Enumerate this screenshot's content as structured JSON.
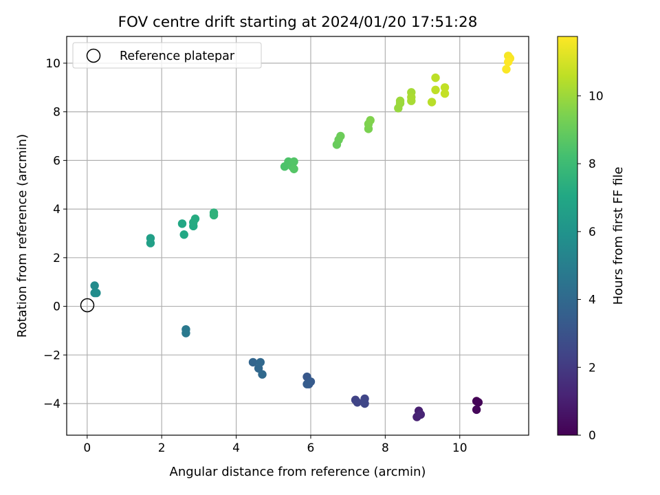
{
  "chart_data": {
    "type": "scatter",
    "title": "FOV centre drift starting at 2024/01/20 17:51:28",
    "xlabel": "Angular distance from reference (arcmin)",
    "ylabel": "Rotation from reference (arcmin)",
    "colorbar_label": "Hours from first FF file",
    "xlim": [
      -0.55,
      11.85
    ],
    "ylim": [
      -5.3,
      11.1
    ],
    "x_ticks": [
      0,
      2,
      4,
      6,
      8,
      10
    ],
    "y_ticks": [
      -4,
      -2,
      0,
      2,
      4,
      6,
      8,
      10
    ],
    "colorbar_range": [
      0,
      11.75
    ],
    "colorbar_ticks": [
      0,
      2,
      4,
      6,
      8,
      10
    ],
    "colormap": "viridis",
    "grid": true,
    "legend_position": "top-left",
    "reference": {
      "label": "Reference platepar",
      "x": 0,
      "y": 0
    },
    "points": [
      {
        "x": 10.45,
        "y": -3.9,
        "c": 0.0
      },
      {
        "x": 10.5,
        "y": -3.95,
        "c": 0.1
      },
      {
        "x": 10.45,
        "y": -4.25,
        "c": 0.2
      },
      {
        "x": 8.9,
        "y": -4.3,
        "c": 1.0
      },
      {
        "x": 8.85,
        "y": -4.55,
        "c": 1.1
      },
      {
        "x": 8.95,
        "y": -4.45,
        "c": 1.2
      },
      {
        "x": 7.2,
        "y": -3.85,
        "c": 2.3
      },
      {
        "x": 7.25,
        "y": -3.95,
        "c": 2.4
      },
      {
        "x": 7.45,
        "y": -3.8,
        "c": 2.45
      },
      {
        "x": 7.45,
        "y": -4.0,
        "c": 2.5
      },
      {
        "x": 5.9,
        "y": -2.9,
        "c": 3.2
      },
      {
        "x": 5.95,
        "y": -3.2,
        "c": 3.3
      },
      {
        "x": 6.0,
        "y": -3.1,
        "c": 3.35
      },
      {
        "x": 5.9,
        "y": -3.2,
        "c": 3.4
      },
      {
        "x": 4.45,
        "y": -2.3,
        "c": 3.8
      },
      {
        "x": 4.6,
        "y": -2.55,
        "c": 3.9
      },
      {
        "x": 4.65,
        "y": -2.3,
        "c": 3.95
      },
      {
        "x": 4.7,
        "y": -2.8,
        "c": 4.0
      },
      {
        "x": 2.65,
        "y": -0.95,
        "c": 4.7
      },
      {
        "x": 2.65,
        "y": -1.1,
        "c": 4.75
      },
      {
        "x": 0.2,
        "y": 0.85,
        "c": 5.6
      },
      {
        "x": 0.2,
        "y": 0.55,
        "c": 5.65
      },
      {
        "x": 0.25,
        "y": 0.55,
        "c": 5.7
      },
      {
        "x": 1.7,
        "y": 2.8,
        "c": 6.6
      },
      {
        "x": 1.7,
        "y": 2.6,
        "c": 6.65
      },
      {
        "x": 2.55,
        "y": 3.4,
        "c": 7.0
      },
      {
        "x": 2.6,
        "y": 2.95,
        "c": 7.05
      },
      {
        "x": 2.85,
        "y": 3.3,
        "c": 7.1
      },
      {
        "x": 2.85,
        "y": 3.45,
        "c": 7.15
      },
      {
        "x": 2.9,
        "y": 3.6,
        "c": 7.2
      },
      {
        "x": 3.4,
        "y": 3.85,
        "c": 7.5
      },
      {
        "x": 3.4,
        "y": 3.75,
        "c": 7.55
      },
      {
        "x": 5.3,
        "y": 5.75,
        "c": 8.4
      },
      {
        "x": 5.4,
        "y": 5.95,
        "c": 8.45
      },
      {
        "x": 5.5,
        "y": 5.75,
        "c": 8.5
      },
      {
        "x": 5.55,
        "y": 5.95,
        "c": 8.55
      },
      {
        "x": 5.55,
        "y": 5.65,
        "c": 8.6
      },
      {
        "x": 6.7,
        "y": 6.65,
        "c": 9.0
      },
      {
        "x": 6.75,
        "y": 6.85,
        "c": 9.05
      },
      {
        "x": 6.8,
        "y": 7.0,
        "c": 9.1
      },
      {
        "x": 7.55,
        "y": 7.3,
        "c": 9.4
      },
      {
        "x": 7.55,
        "y": 7.5,
        "c": 9.45
      },
      {
        "x": 7.6,
        "y": 7.65,
        "c": 9.5
      },
      {
        "x": 8.35,
        "y": 8.15,
        "c": 9.9
      },
      {
        "x": 8.4,
        "y": 8.35,
        "c": 9.95
      },
      {
        "x": 8.4,
        "y": 8.45,
        "c": 10.0
      },
      {
        "x": 8.7,
        "y": 8.8,
        "c": 10.15
      },
      {
        "x": 8.7,
        "y": 8.45,
        "c": 10.2
      },
      {
        "x": 8.7,
        "y": 8.6,
        "c": 10.25
      },
      {
        "x": 9.25,
        "y": 8.4,
        "c": 10.5
      },
      {
        "x": 9.35,
        "y": 9.4,
        "c": 10.55
      },
      {
        "x": 9.35,
        "y": 8.9,
        "c": 10.6
      },
      {
        "x": 9.6,
        "y": 9.0,
        "c": 10.65
      },
      {
        "x": 9.6,
        "y": 8.75,
        "c": 10.7
      },
      {
        "x": 11.3,
        "y": 10.3,
        "c": 11.6
      },
      {
        "x": 11.35,
        "y": 10.2,
        "c": 11.65
      },
      {
        "x": 11.25,
        "y": 9.75,
        "c": 11.7
      },
      {
        "x": 11.3,
        "y": 10.05,
        "c": 11.75
      }
    ]
  }
}
